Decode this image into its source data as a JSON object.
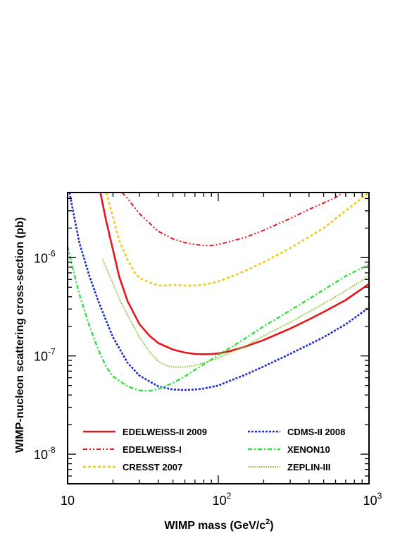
{
  "chart_data": {
    "type": "line",
    "x_scale": "log",
    "y_scale": "log",
    "xlim": [
      10,
      1000
    ],
    "ylim": [
      5e-09,
      4.6e-06
    ],
    "xlabel_main": "WIMP mass (GeV/c",
    "xlabel_sup": "2",
    "xlabel_end": ")",
    "ylabel": "WIMP-nucleon scattering cross-section (pb)",
    "x_ticks": [
      {
        "base": "10",
        "exp": ""
      },
      {
        "base": "10",
        "exp": "2"
      },
      {
        "base": "10",
        "exp": "3"
      }
    ],
    "y_ticks": [
      {
        "base": "10",
        "exp": "-6"
      },
      {
        "base": "10",
        "exp": "-7"
      },
      {
        "base": "10",
        "exp": "-8"
      }
    ],
    "legend_position": "bottom",
    "grid": false,
    "series": [
      {
        "name": "EDELWEISS-II 2009",
        "color": "#e8141b",
        "dash": "solid",
        "points": [
          [
            16.5,
            4.6e-06
          ],
          [
            18,
            2.4e-06
          ],
          [
            20,
            1.2e-06
          ],
          [
            22,
            6.4e-07
          ],
          [
            25,
            3.6e-07
          ],
          [
            30,
            2.1e-07
          ],
          [
            35,
            1.6e-07
          ],
          [
            40,
            1.35e-07
          ],
          [
            50,
            1.16e-07
          ],
          [
            60,
            1.08e-07
          ],
          [
            70,
            1.045e-07
          ],
          [
            80,
            1.04e-07
          ],
          [
            90,
            1.045e-07
          ],
          [
            100,
            1.06e-07
          ],
          [
            120,
            1.12e-07
          ],
          [
            150,
            1.24e-07
          ],
          [
            200,
            1.45e-07
          ],
          [
            300,
            1.9e-07
          ],
          [
            400,
            2.35e-07
          ],
          [
            500,
            2.8e-07
          ],
          [
            700,
            3.7e-07
          ],
          [
            1000,
            5.4e-07
          ]
        ]
      },
      {
        "name": "EDELWEISS-I",
        "color": "#e8141b",
        "dash": "dashdotdot",
        "points": [
          [
            23,
            4.6e-06
          ],
          [
            25,
            4e-06
          ],
          [
            30,
            2.8e-06
          ],
          [
            40,
            1.85e-06
          ],
          [
            50,
            1.55e-06
          ],
          [
            60,
            1.42e-06
          ],
          [
            70,
            1.36e-06
          ],
          [
            80,
            1.33e-06
          ],
          [
            90,
            1.33e-06
          ],
          [
            100,
            1.36e-06
          ],
          [
            150,
            1.6e-06
          ],
          [
            200,
            1.9e-06
          ],
          [
            300,
            2.5e-06
          ],
          [
            400,
            3.1e-06
          ],
          [
            500,
            3.6e-06
          ],
          [
            600,
            4.1e-06
          ],
          [
            670,
            4.6e-06
          ]
        ]
      },
      {
        "name": "CRESST 2007",
        "color": "#f2cb18",
        "dash": "dashed",
        "points": [
          [
            18,
            4.6e-06
          ],
          [
            20,
            2.6e-06
          ],
          [
            22,
            1.5e-06
          ],
          [
            25,
            9.5e-07
          ],
          [
            28,
            7e-07
          ],
          [
            30,
            6.2e-07
          ],
          [
            35,
            5.6e-07
          ],
          [
            40,
            5.2e-07
          ],
          [
            45,
            5.2e-07
          ],
          [
            50,
            5.3e-07
          ],
          [
            60,
            5.2e-07
          ],
          [
            70,
            5.2e-07
          ],
          [
            80,
            5.3e-07
          ],
          [
            100,
            5.7e-07
          ],
          [
            150,
            7.3e-07
          ],
          [
            200,
            9e-07
          ],
          [
            300,
            1.25e-06
          ],
          [
            500,
            2e-06
          ],
          [
            700,
            3e-06
          ],
          [
            1000,
            4.6e-06
          ]
        ]
      },
      {
        "name": "CDMS-II 2008",
        "color": "#1b2bd0",
        "dash": "dotted",
        "points": [
          [
            10.3,
            4.6e-06
          ],
          [
            11,
            2.7e-06
          ],
          [
            12,
            1.4e-06
          ],
          [
            14,
            6.4e-07
          ],
          [
            16,
            3.6e-07
          ],
          [
            18,
            2.3e-07
          ],
          [
            20,
            1.55e-07
          ],
          [
            25,
            8.5e-08
          ],
          [
            30,
            6.3e-08
          ],
          [
            40,
            4.9e-08
          ],
          [
            50,
            4.55e-08
          ],
          [
            60,
            4.5e-08
          ],
          [
            70,
            4.55e-08
          ],
          [
            80,
            4.65e-08
          ],
          [
            100,
            5e-08
          ],
          [
            120,
            5.6e-08
          ],
          [
            150,
            6.4e-08
          ],
          [
            200,
            7.8e-08
          ],
          [
            300,
            1.05e-07
          ],
          [
            500,
            1.55e-07
          ],
          [
            700,
            2.1e-07
          ],
          [
            1000,
            3.1e-07
          ]
        ]
      },
      {
        "name": "XENON10",
        "color": "#2ee03a",
        "dash": "dashdot",
        "points": [
          [
            10,
            1.3e-06
          ],
          [
            11,
            7e-07
          ],
          [
            12,
            4.2e-07
          ],
          [
            14,
            2e-07
          ],
          [
            16,
            1.15e-07
          ],
          [
            18,
            7.8e-08
          ],
          [
            20,
            6.2e-08
          ],
          [
            25,
            4.9e-08
          ],
          [
            30,
            4.45e-08
          ],
          [
            35,
            4.4e-08
          ],
          [
            40,
            4.6e-08
          ],
          [
            50,
            5.3e-08
          ],
          [
            60,
            6.2e-08
          ],
          [
            80,
            8.2e-08
          ],
          [
            100,
            1.02e-07
          ],
          [
            150,
            1.5e-07
          ],
          [
            200,
            2e-07
          ],
          [
            300,
            2.9e-07
          ],
          [
            500,
            4.7e-07
          ],
          [
            700,
            6.5e-07
          ],
          [
            1000,
            8.5e-07
          ]
        ]
      },
      {
        "name": "ZEPLIN-III",
        "color": "#8cc43a",
        "dash": "finedotted",
        "points": [
          [
            17,
            9.6e-07
          ],
          [
            18,
            8e-07
          ],
          [
            20,
            5.5e-07
          ],
          [
            22,
            3.8e-07
          ],
          [
            25,
            2.6e-07
          ],
          [
            30,
            1.55e-07
          ],
          [
            35,
            1.1e-07
          ],
          [
            40,
            8.8e-08
          ],
          [
            45,
            8e-08
          ],
          [
            50,
            7.7e-08
          ],
          [
            60,
            7.7e-08
          ],
          [
            70,
            8e-08
          ],
          [
            80,
            8.5e-08
          ],
          [
            100,
            9.5e-08
          ],
          [
            150,
            1.25e-07
          ],
          [
            200,
            1.6e-07
          ],
          [
            300,
            2.2e-07
          ],
          [
            500,
            3.4e-07
          ],
          [
            700,
            4.6e-07
          ],
          [
            1000,
            6.5e-07
          ]
        ]
      }
    ]
  }
}
